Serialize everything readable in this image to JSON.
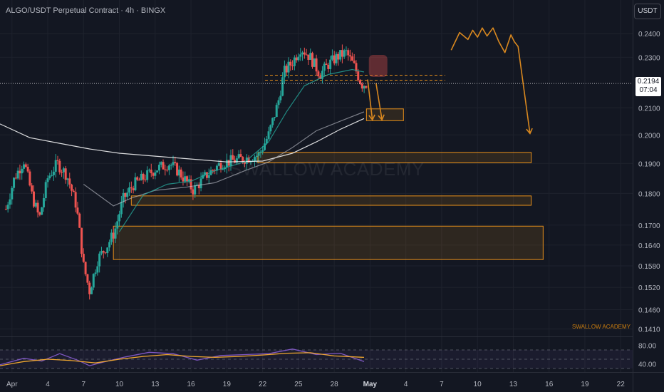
{
  "header": {
    "title": "ALGO/USDT Perpetual Contract · 4h · BINGX",
    "unit": "USDT"
  },
  "current_price": {
    "price": "0.2194",
    "countdown": "07:04"
  },
  "watermark": "SWALLOW ACADEMY",
  "brand_small": "SWALLOW ACADEMY",
  "colors": {
    "background": "#131722",
    "bull": "#26a69a",
    "bear": "#ef5350",
    "zone_border": "#e8901a",
    "projection": "#d9881f",
    "rsi": "#7e57c2",
    "rsi_ma": "#f0a72e",
    "ema_long": "#ffffff",
    "ema_mid": "#d1d4dc",
    "ema_short": "#26a69a"
  },
  "chart_data": [
    {
      "type": "candlestick",
      "title": "ALGO/USDT Perpetual Contract · 4h · BINGX",
      "y_scale": "log",
      "ylim": [
        0.1395,
        0.246
      ],
      "xlim": [
        0,
        53
      ],
      "y_ticks": [
        "0.2400",
        "0.2300",
        "0.2100",
        "0.2000",
        "0.1900",
        "0.1800",
        "0.1700",
        "0.1640",
        "0.1580",
        "0.1520",
        "0.1460",
        "0.1410"
      ],
      "x_ticks": [
        {
          "label": "Apr",
          "day": 1
        },
        {
          "label": "4",
          "day": 4
        },
        {
          "label": "7",
          "day": 7
        },
        {
          "label": "10",
          "day": 10
        },
        {
          "label": "13",
          "day": 13
        },
        {
          "label": "16",
          "day": 16
        },
        {
          "label": "19",
          "day": 19
        },
        {
          "label": "22",
          "day": 22
        },
        {
          "label": "25",
          "day": 25
        },
        {
          "label": "28",
          "day": 28
        },
        {
          "label": "May",
          "day": 31
        },
        {
          "label": "4",
          "day": 34
        },
        {
          "label": "7",
          "day": 37
        },
        {
          "label": "10",
          "day": 40
        },
        {
          "label": "13",
          "day": 43
        },
        {
          "label": "16",
          "day": 46
        },
        {
          "label": "19",
          "day": 49
        },
        {
          "label": "22",
          "day": 52
        }
      ],
      "price_path": [
        [
          0.5,
          0.175
        ],
        [
          1.2,
          0.185
        ],
        [
          2.0,
          0.191
        ],
        [
          2.7,
          0.179
        ],
        [
          3.3,
          0.172
        ],
        [
          4.0,
          0.185
        ],
        [
          4.8,
          0.19
        ],
        [
          5.6,
          0.186
        ],
        [
          6.4,
          0.176
        ],
        [
          7.0,
          0.158
        ],
        [
          7.5,
          0.151
        ],
        [
          8.2,
          0.16
        ],
        [
          9.0,
          0.164
        ],
        [
          9.6,
          0.168
        ],
        [
          10.3,
          0.178
        ],
        [
          11.2,
          0.183
        ],
        [
          12.0,
          0.185
        ],
        [
          13.0,
          0.188
        ],
        [
          14.2,
          0.19
        ],
        [
          15.0,
          0.187
        ],
        [
          16.2,
          0.181
        ],
        [
          17.3,
          0.186
        ],
        [
          18.5,
          0.19
        ],
        [
          19.6,
          0.191
        ],
        [
          20.8,
          0.192
        ],
        [
          21.7,
          0.193
        ],
        [
          22.5,
          0.2
        ],
        [
          23.3,
          0.212
        ],
        [
          23.8,
          0.224
        ],
        [
          24.5,
          0.228
        ],
        [
          25.2,
          0.234
        ],
        [
          26.0,
          0.23
        ],
        [
          26.8,
          0.223
        ],
        [
          27.5,
          0.227
        ],
        [
          28.2,
          0.23
        ],
        [
          29.0,
          0.232
        ],
        [
          29.7,
          0.226
        ],
        [
          30.3,
          0.219
        ],
        [
          30.8,
          0.2194
        ]
      ],
      "indicators": [
        {
          "kind": "moving_average_long",
          "points": [
            [
              0,
              0.204
            ],
            [
              2.5,
              0.199
            ],
            [
              5,
              0.197
            ],
            [
              7.5,
              0.195
            ],
            [
              10,
              0.1935
            ],
            [
              13,
              0.1925
            ],
            [
              16,
              0.1915
            ],
            [
              19,
              0.1905
            ],
            [
              22,
              0.1908
            ],
            [
              24.5,
              0.1935
            ],
            [
              26.5,
              0.1975
            ],
            [
              28.5,
              0.202
            ],
            [
              30.5,
              0.206
            ]
          ]
        },
        {
          "kind": "moving_average_mid",
          "points": [
            [
              7,
              0.183
            ],
            [
              9.5,
              0.176
            ],
            [
              11,
              0.1785
            ],
            [
              13,
              0.181
            ],
            [
              15.5,
              0.182
            ],
            [
              18,
              0.1835
            ],
            [
              20.5,
              0.1875
            ],
            [
              22.5,
              0.1905
            ],
            [
              24.5,
              0.1955
            ],
            [
              26.5,
              0.2015
            ],
            [
              28.5,
              0.205
            ],
            [
              30.5,
              0.2085
            ]
          ]
        },
        {
          "kind": "moving_average_short",
          "points": [
            [
              10,
              0.168
            ],
            [
              12,
              0.1795
            ],
            [
              14,
              0.183
            ],
            [
              16,
              0.184
            ],
            [
              18,
              0.1875
            ],
            [
              20.5,
              0.1905
            ],
            [
              22.5,
              0.1975
            ],
            [
              24,
              0.2085
            ],
            [
              25.5,
              0.2185
            ],
            [
              27.5,
              0.223
            ],
            [
              29.5,
              0.225
            ],
            [
              30.5,
              0.224
            ]
          ]
        }
      ],
      "zones": [
        {
          "x0": 30.7,
          "x1": 33.8,
          "y0": 0.2096,
          "y1": 0.2052
        },
        {
          "x0": 21.6,
          "x1": 44.5,
          "y0": 0.1938,
          "y1": 0.1902
        },
        {
          "x0": 11.0,
          "x1": 44.5,
          "y0": 0.1792,
          "y1": 0.1762
        },
        {
          "x0": 9.5,
          "x1": 45.5,
          "y0": 0.1697,
          "y1": 0.1598
        }
      ],
      "levels": [
        0.2227,
        0.2207
      ],
      "projections": [
        {
          "points": [
            [
              30.8,
              0.221
            ],
            [
              31.2,
              0.2055
            ]
          ]
        },
        {
          "points": [
            [
              31.5,
              0.2195
            ],
            [
              32.0,
              0.2055
            ]
          ]
        },
        {
          "points": [
            [
              37.8,
              0.233
            ],
            [
              38.5,
              0.2405
            ],
            [
              39.2,
              0.2375
            ],
            [
              39.6,
              0.2415
            ],
            [
              40.0,
              0.2385
            ],
            [
              40.4,
              0.2425
            ],
            [
              40.8,
              0.239
            ],
            [
              41.3,
              0.2425
            ],
            [
              41.8,
              0.2365
            ],
            [
              42.3,
              0.232
            ],
            [
              42.8,
              0.2395
            ],
            [
              43.1,
              0.2365
            ],
            [
              43.4,
              0.2345
            ],
            [
              44.4,
              0.2005
            ]
          ]
        }
      ]
    },
    {
      "type": "line",
      "ylim": [
        30,
        90
      ],
      "y_ticks": [
        "80.00",
        "40.00"
      ],
      "levels": [
        70,
        50,
        30
      ],
      "series": [
        {
          "kind": "rsi",
          "points": [
            [
              0,
              38
            ],
            [
              2,
              52
            ],
            [
              3.5,
              46
            ],
            [
              5,
              62
            ],
            [
              6.5,
              48
            ],
            [
              7.5,
              36
            ],
            [
              9,
              46
            ],
            [
              10.5,
              55
            ],
            [
              12.5,
              65
            ],
            [
              14.5,
              62
            ],
            [
              16.5,
              48
            ],
            [
              18.5,
              58
            ],
            [
              20.5,
              60
            ],
            [
              22.5,
              62
            ],
            [
              24.5,
              72
            ],
            [
              26.5,
              60
            ],
            [
              28.5,
              63
            ],
            [
              30.5,
              45
            ]
          ]
        },
        {
          "kind": "rsi_ma",
          "points": [
            [
              0,
              36
            ],
            [
              2,
              45
            ],
            [
              4,
              50
            ],
            [
              6,
              47
            ],
            [
              8,
              42
            ],
            [
              10,
              50
            ],
            [
              12,
              56
            ],
            [
              14,
              60
            ],
            [
              16,
              56
            ],
            [
              18,
              54
            ],
            [
              20,
              56
            ],
            [
              22,
              59
            ],
            [
              24,
              63
            ],
            [
              26,
              64
            ],
            [
              28,
              57
            ],
            [
              30.5,
              54
            ]
          ]
        }
      ]
    }
  ]
}
